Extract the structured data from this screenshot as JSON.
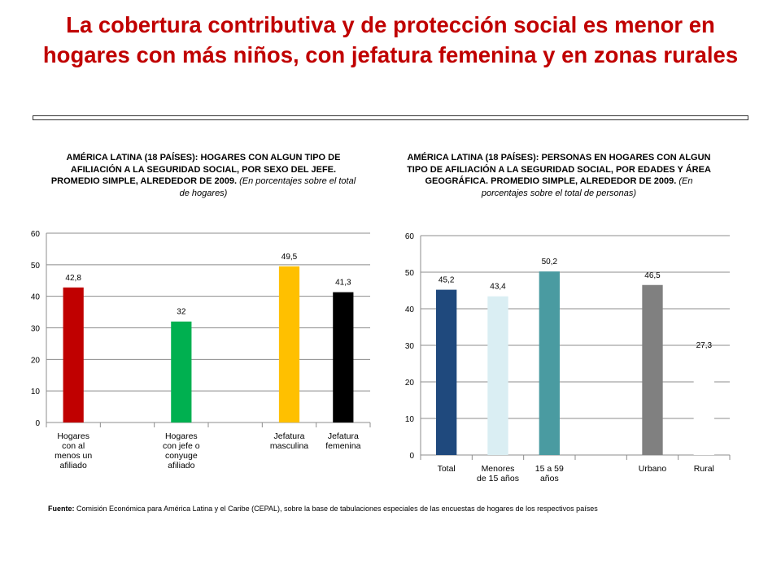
{
  "title": "La cobertura contributiva y de protección social es menor en hogares con más niños, con jefatura femenina y en zonas rurales",
  "captions": {
    "left": {
      "main": "AMÉRICA LATINA (18 PAÍSES): HOGARES CON ALGUN TIPO DE AFILIACIÓN A LA SEGURIDAD SOCIAL, POR SEXO DEL JEFE. PROMEDIO SIMPLE, ALREDEDOR DE 2009.",
      "note": "(En porcentajes sobre el total de hogares)"
    },
    "right": {
      "main": "AMÉRICA LATINA (18 PAÍSES): PERSONAS EN HOGARES CON ALGUN TIPO DE AFILIACIÓN A LA SEGURIDAD SOCIAL, POR EDADES Y ÁREA GEOGRÁFICA. PROMEDIO SIMPLE, ALREDEDOR DE 2009.",
      "note": "(En porcentajes sobre el total de personas)"
    }
  },
  "source": {
    "label": "Fuente:",
    "text": "Comisión Económica para América Latina y el Caribe (CEPAL), sobre la base de tabulaciones especiales de las encuestas de hogares de los respectivos países"
  },
  "chart_data": [
    {
      "type": "bar",
      "title": "AMÉRICA LATINA (18 PAÍSES): HOGARES CON ALGUN TIPO DE AFILIACIÓN A LA SEGURIDAD SOCIAL, POR SEXO DEL JEFE",
      "categories": [
        "Hogares con al menos un afiliado",
        "",
        "Hogares con jefe o conyuge afiliado",
        "",
        "Jefatura masculina",
        "Jefatura femenina"
      ],
      "category_lines": [
        [
          "Hogares",
          "con al",
          "menos un",
          "afiliado"
        ],
        [],
        [
          "Hogares",
          "con jefe o",
          "conyuge",
          "afiliado"
        ],
        [],
        [
          "Jefatura",
          "masculina"
        ],
        [
          "Jefatura",
          "femenina"
        ]
      ],
      "values": [
        42.8,
        null,
        32,
        null,
        49.5,
        41.3
      ],
      "value_labels": [
        "42,8",
        "",
        "32",
        "",
        "49,5",
        "41,3"
      ],
      "colors": [
        "#c00000",
        "",
        "#00b050",
        "",
        "#ffc000",
        "#000000"
      ],
      "yticks": [
        "0",
        "10",
        "20",
        "30",
        "40",
        "50",
        "60"
      ],
      "ylim": [
        0,
        60
      ],
      "xlabel": "",
      "ylabel": "",
      "grid": true
    },
    {
      "type": "bar",
      "title": "AMÉRICA LATINA (18 PAÍSES): PERSONAS EN HOGARES CON ALGUN TIPO DE AFILIACIÓN A LA SEGURIDAD SOCIAL, POR EDADES Y ÁREA GEOGRÁFICA",
      "categories": [
        "Total",
        "Menores de 15 años",
        "15 a 59 años",
        "",
        "Urbano",
        "Rural"
      ],
      "category_lines": [
        [
          "Total"
        ],
        [
          "Menores",
          "de 15 años"
        ],
        [
          "15 a 59",
          "años"
        ],
        [],
        [
          "Urbano"
        ],
        [
          "Rural"
        ]
      ],
      "values": [
        45.2,
        43.4,
        50.2,
        null,
        46.5,
        27.3
      ],
      "value_labels": [
        "45,2",
        "43,4",
        "50,2",
        "",
        "46,5",
        "27,3"
      ],
      "colors": [
        "#1f497d",
        "#daeef3",
        "#4a9ba1",
        "",
        "#808080",
        "#ffffff"
      ],
      "yticks": [
        "0",
        "10",
        "20",
        "30",
        "40",
        "50",
        "60"
      ],
      "ylim": [
        0,
        60
      ],
      "xlabel": "",
      "ylabel": "",
      "grid": true
    }
  ]
}
